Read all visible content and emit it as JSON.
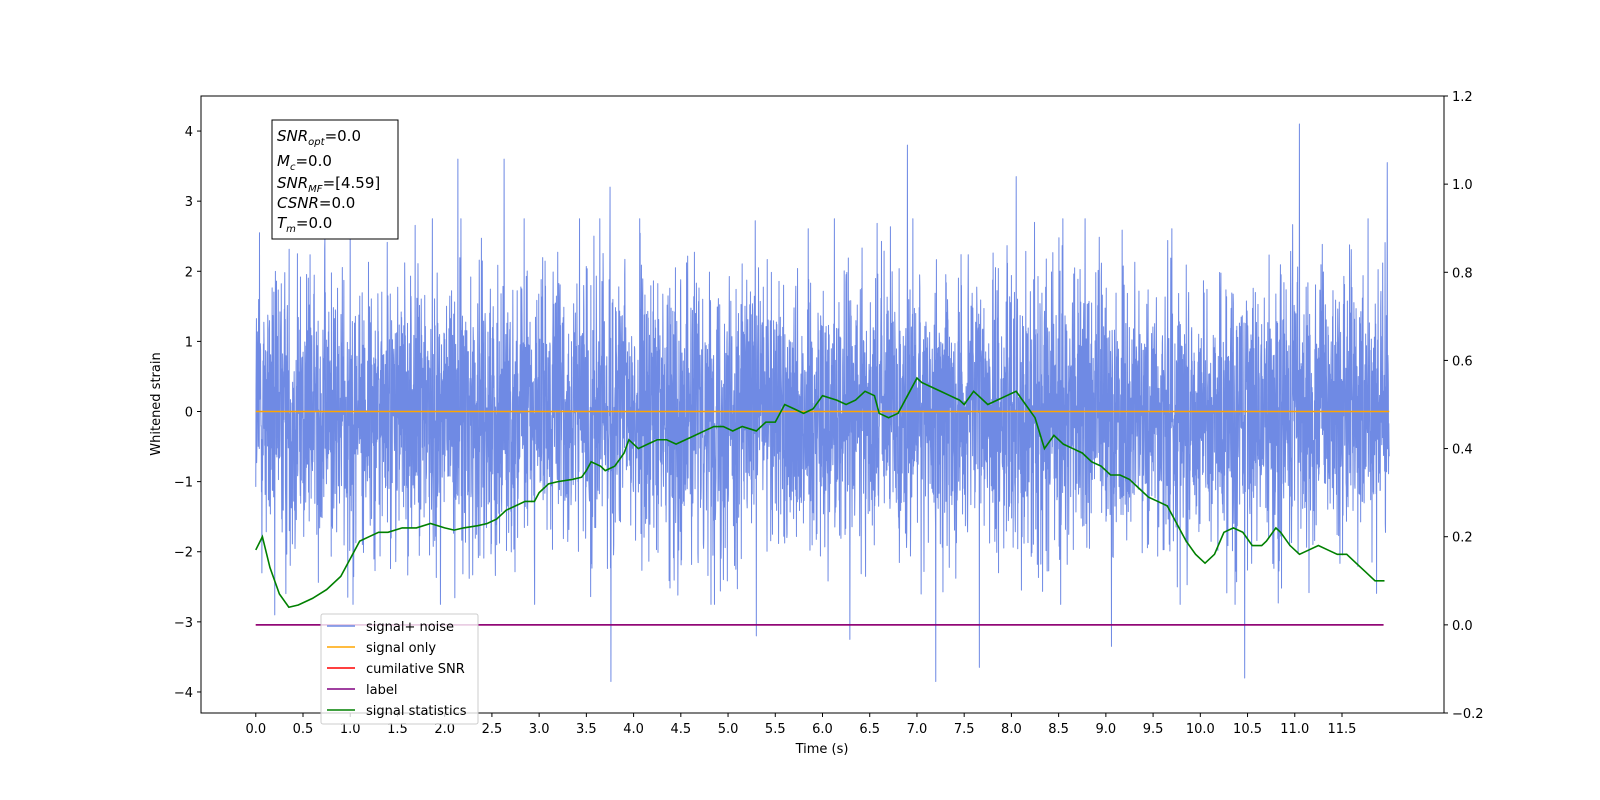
{
  "chart_data": {
    "type": "line",
    "xlabel": "Time (s)",
    "ylabel": "Whitened strain",
    "xlim": [
      -0.58,
      12.58
    ],
    "ylim": [
      -4.3,
      4.5
    ],
    "y2lim": [
      -0.2,
      1.2
    ],
    "x_ticks": [
      0.0,
      0.5,
      1.0,
      1.5,
      2.0,
      2.5,
      3.0,
      3.5,
      4.0,
      4.5,
      5.0,
      5.5,
      6.0,
      6.5,
      7.0,
      7.5,
      8.0,
      8.5,
      9.0,
      9.5,
      10.0,
      10.5,
      11.0,
      11.5
    ],
    "x_tick_labels": [
      "0.0",
      "0.5",
      "1.0",
      "1.5",
      "2.0",
      "2.5",
      "3.0",
      "3.5",
      "4.0",
      "4.5",
      "5.0",
      "5.5",
      "6.0",
      "6.5",
      "7.0",
      "7.5",
      "8.0",
      "8.5",
      "9.0",
      "9.5",
      "10.0",
      "10.5",
      "11.0",
      "11.5"
    ],
    "y_ticks": [
      -4,
      -3,
      -2,
      -1,
      0,
      1,
      2,
      3,
      4
    ],
    "y_tick_labels": [
      "−4",
      "−3",
      "−2",
      "−1",
      "0",
      "1",
      "2",
      "3",
      "4"
    ],
    "y2_ticks": [
      -0.2,
      0.0,
      0.2,
      0.4,
      0.6,
      0.8,
      1.0,
      1.2
    ],
    "y2_tick_labels": [
      "−0.2",
      "0.0",
      "0.2",
      "0.4",
      "0.6",
      "0.8",
      "1.0",
      "1.2"
    ],
    "grid": false,
    "legend_position": "lower-left",
    "series": [
      {
        "name": "signal+ noise",
        "color": "#6f8ae4",
        "axis": "left",
        "style": "noise",
        "x_range": [
          0.0,
          12.0
        ],
        "spread": 1.0,
        "peaks": [
          {
            "x": 0.04,
            "y": 2.55
          },
          {
            "x": 1.0,
            "y": 2.7
          },
          {
            "x": 2.14,
            "y": 3.6
          },
          {
            "x": 2.63,
            "y": 3.6
          },
          {
            "x": 3.75,
            "y": 3.2
          },
          {
            "x": 6.9,
            "y": 3.8
          },
          {
            "x": 8.05,
            "y": 3.35
          },
          {
            "x": 11.05,
            "y": 4.1
          },
          {
            "x": 11.98,
            "y": 3.55
          }
        ],
        "troughs": [
          {
            "x": 3.76,
            "y": -3.85
          },
          {
            "x": 5.3,
            "y": -3.2
          },
          {
            "x": 6.29,
            "y": -3.25
          },
          {
            "x": 7.2,
            "y": -3.85
          },
          {
            "x": 7.66,
            "y": -3.65
          },
          {
            "x": 9.06,
            "y": -3.35
          },
          {
            "x": 10.47,
            "y": -3.8
          },
          {
            "x": 0.2,
            "y": -2.9
          }
        ]
      },
      {
        "name": "signal only",
        "color": "#ffa500",
        "axis": "left",
        "x": [
          0.0,
          12.0
        ],
        "y": [
          0.0,
          0.0
        ]
      },
      {
        "name": "cumilative SNR",
        "color": "#ff0000",
        "axis": "right",
        "x": [
          0.0,
          11.94
        ],
        "y": [
          0.0,
          0.0
        ]
      },
      {
        "name": "label",
        "color": "#800080",
        "axis": "right",
        "x": [
          0.0,
          11.94
        ],
        "y": [
          0.0,
          0.0
        ]
      },
      {
        "name": "signal statistics",
        "color": "#008000",
        "axis": "right",
        "x": [
          0.0,
          0.07,
          0.15,
          0.25,
          0.35,
          0.45,
          0.6,
          0.75,
          0.9,
          1.0,
          1.1,
          1.2,
          1.3,
          1.4,
          1.55,
          1.7,
          1.85,
          2.0,
          2.1,
          2.2,
          2.35,
          2.45,
          2.55,
          2.65,
          2.75,
          2.85,
          2.95,
          3.0,
          3.1,
          3.2,
          3.35,
          3.45,
          3.5,
          3.55,
          3.65,
          3.7,
          3.8,
          3.9,
          3.95,
          4.05,
          4.15,
          4.25,
          4.35,
          4.45,
          4.55,
          4.65,
          4.75,
          4.85,
          4.95,
          5.05,
          5.15,
          5.3,
          5.4,
          5.5,
          5.6,
          5.7,
          5.8,
          5.9,
          6.0,
          6.15,
          6.25,
          6.35,
          6.45,
          6.55,
          6.6,
          6.7,
          6.8,
          6.9,
          7.0,
          7.05,
          7.15,
          7.25,
          7.35,
          7.45,
          7.5,
          7.6,
          7.75,
          7.85,
          7.95,
          8.05,
          8.15,
          8.25,
          8.35,
          8.45,
          8.55,
          8.65,
          8.75,
          8.85,
          8.95,
          9.05,
          9.15,
          9.25,
          9.35,
          9.45,
          9.55,
          9.65,
          9.75,
          9.85,
          9.95,
          10.05,
          10.15,
          10.25,
          10.35,
          10.45,
          10.55,
          10.65,
          10.7,
          10.8,
          10.85,
          10.95,
          11.05,
          11.15,
          11.25,
          11.35,
          11.45,
          11.55,
          11.65,
          11.75,
          11.85,
          11.95
        ],
        "y": [
          0.17,
          0.2,
          0.13,
          0.07,
          0.04,
          0.045,
          0.06,
          0.08,
          0.11,
          0.15,
          0.19,
          0.2,
          0.21,
          0.21,
          0.22,
          0.22,
          0.23,
          0.22,
          0.215,
          0.22,
          0.225,
          0.23,
          0.24,
          0.26,
          0.27,
          0.28,
          0.28,
          0.3,
          0.32,
          0.325,
          0.33,
          0.335,
          0.35,
          0.37,
          0.36,
          0.35,
          0.36,
          0.39,
          0.42,
          0.4,
          0.41,
          0.42,
          0.42,
          0.41,
          0.42,
          0.43,
          0.44,
          0.45,
          0.45,
          0.44,
          0.45,
          0.44,
          0.46,
          0.46,
          0.5,
          0.49,
          0.48,
          0.49,
          0.52,
          0.51,
          0.5,
          0.51,
          0.53,
          0.52,
          0.48,
          0.47,
          0.48,
          0.52,
          0.56,
          0.55,
          0.54,
          0.53,
          0.52,
          0.51,
          0.5,
          0.53,
          0.5,
          0.51,
          0.52,
          0.53,
          0.5,
          0.47,
          0.4,
          0.43,
          0.41,
          0.4,
          0.39,
          0.37,
          0.36,
          0.34,
          0.34,
          0.33,
          0.31,
          0.29,
          0.28,
          0.27,
          0.23,
          0.19,
          0.16,
          0.14,
          0.16,
          0.21,
          0.22,
          0.21,
          0.18,
          0.18,
          0.19,
          0.22,
          0.21,
          0.18,
          0.16,
          0.17,
          0.18,
          0.17,
          0.16,
          0.16,
          0.14,
          0.12,
          0.1,
          0.1
        ]
      }
    ],
    "annotation": {
      "lines": [
        {
          "base": "SNR",
          "sub": "opt",
          "rest": "=0.0"
        },
        {
          "base": "M",
          "sub": "c",
          "rest": "=0.0"
        },
        {
          "base": "SNR",
          "sub": "MF",
          "rest": "=[4.59]"
        },
        {
          "base": "CSNR",
          "sub": "",
          "rest": "=0.0"
        },
        {
          "base": "T",
          "sub": "m",
          "rest": "=0.0"
        }
      ]
    }
  }
}
